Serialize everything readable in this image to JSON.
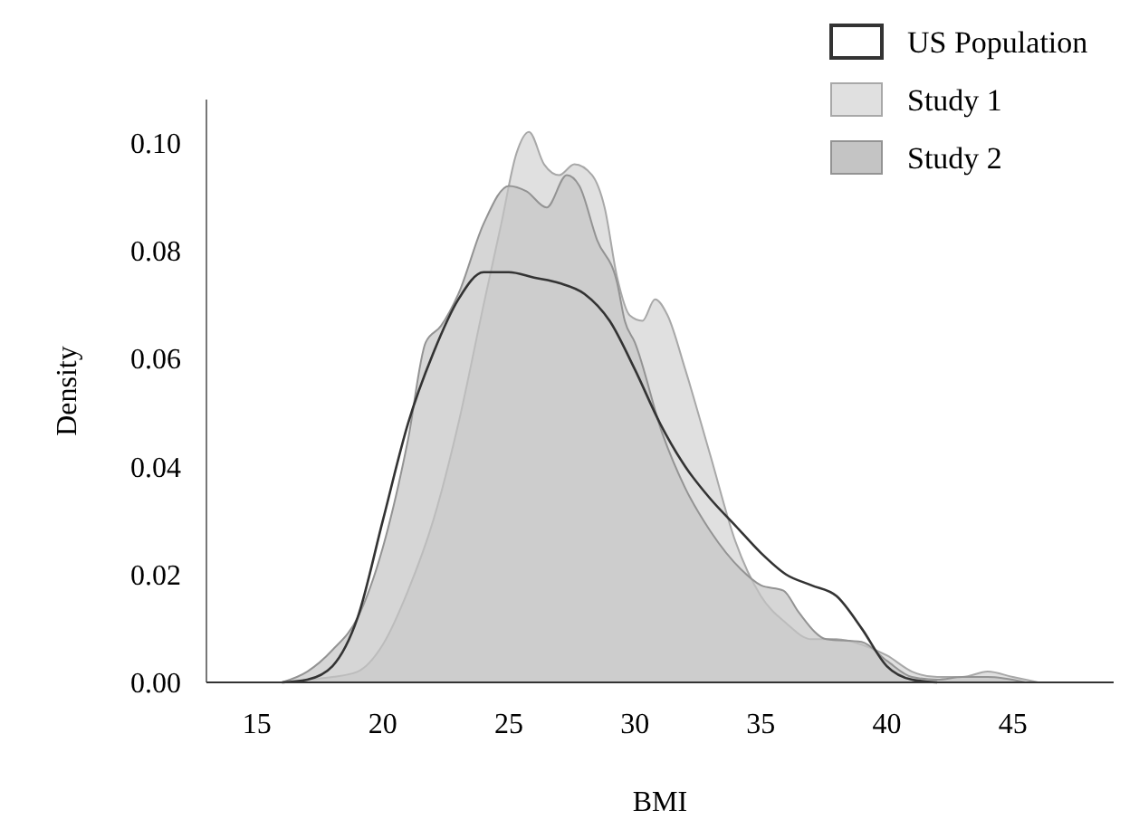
{
  "chart_data": {
    "type": "area",
    "xlabel": "BMI",
    "ylabel": "Density",
    "xlim": [
      13,
      49
    ],
    "ylim": [
      0,
      0.108
    ],
    "xticks": [
      15,
      20,
      25,
      30,
      35,
      40,
      45
    ],
    "yticks": [
      {
        "value": 0,
        "label": "0.00"
      },
      {
        "value": 0.02,
        "label": "0.02"
      },
      {
        "value": 0.04,
        "label": "0.04"
      },
      {
        "value": 0.06,
        "label": "0.06"
      },
      {
        "value": 0.08,
        "label": "0.08"
      },
      {
        "value": 0.1,
        "label": "0.10"
      }
    ],
    "legend": "top right",
    "grid": false,
    "series": [
      {
        "name": "Study 1",
        "color": "#e0e0e0",
        "x": [
          16,
          17,
          18,
          19,
          20,
          21,
          22,
          23,
          24,
          24.7,
          25.3,
          25.8,
          26.4,
          27,
          27.6,
          28.3,
          28.8,
          29.3,
          29.8,
          30.3,
          30.8,
          31.3,
          32,
          33,
          34,
          35,
          36,
          37,
          38,
          39,
          40,
          41,
          42,
          43,
          44,
          45,
          46
        ],
        "values": [
          0,
          0.0005,
          0.001,
          0.002,
          0.007,
          0.017,
          0.03,
          0.048,
          0.07,
          0.085,
          0.098,
          0.102,
          0.096,
          0.094,
          0.096,
          0.094,
          0.088,
          0.075,
          0.068,
          0.067,
          0.071,
          0.068,
          0.058,
          0.042,
          0.026,
          0.016,
          0.011,
          0.008,
          0.008,
          0.007,
          0.005,
          0.002,
          0.001,
          0.001,
          0.002,
          0.001,
          0
        ]
      },
      {
        "name": "Study 2",
        "color": "#c4c4c4",
        "x": [
          16,
          17,
          18,
          19,
          20,
          21,
          21.7,
          22.3,
          23,
          24,
          25,
          25.7,
          26.5,
          27.3,
          27.8,
          28.5,
          29.3,
          29.6,
          30,
          31.1,
          32,
          33,
          34.2,
          35,
          35.9,
          36.5,
          37.6,
          39,
          40,
          41,
          42,
          43,
          44,
          45.5
        ],
        "values": [
          0,
          0.002,
          0.006,
          0.012,
          0.025,
          0.045,
          0.063,
          0.066,
          0.072,
          0.085,
          0.092,
          0.091,
          0.088,
          0.094,
          0.092,
          0.082,
          0.074,
          0.067,
          0.063,
          0.046,
          0.036,
          0.028,
          0.021,
          0.018,
          0.017,
          0.013,
          0.008,
          0.0075,
          0.004,
          0.001,
          0.0005,
          0.001,
          0.001,
          0
        ]
      },
      {
        "name": "US Population",
        "type": "line",
        "color": "#333333",
        "x": [
          16,
          17,
          18,
          19,
          20,
          21,
          22,
          23,
          24,
          25,
          26,
          27,
          28,
          29,
          30,
          31,
          32,
          33,
          34,
          35,
          36,
          37,
          38,
          39,
          40,
          41,
          42
        ],
        "values": [
          0,
          0.0005,
          0.003,
          0.012,
          0.03,
          0.048,
          0.061,
          0.071,
          0.076,
          0.076,
          0.075,
          0.074,
          0.072,
          0.067,
          0.058,
          0.048,
          0.04,
          0.034,
          0.029,
          0.024,
          0.02,
          0.018,
          0.016,
          0.01,
          0.003,
          0.0005,
          0
        ]
      }
    ]
  }
}
